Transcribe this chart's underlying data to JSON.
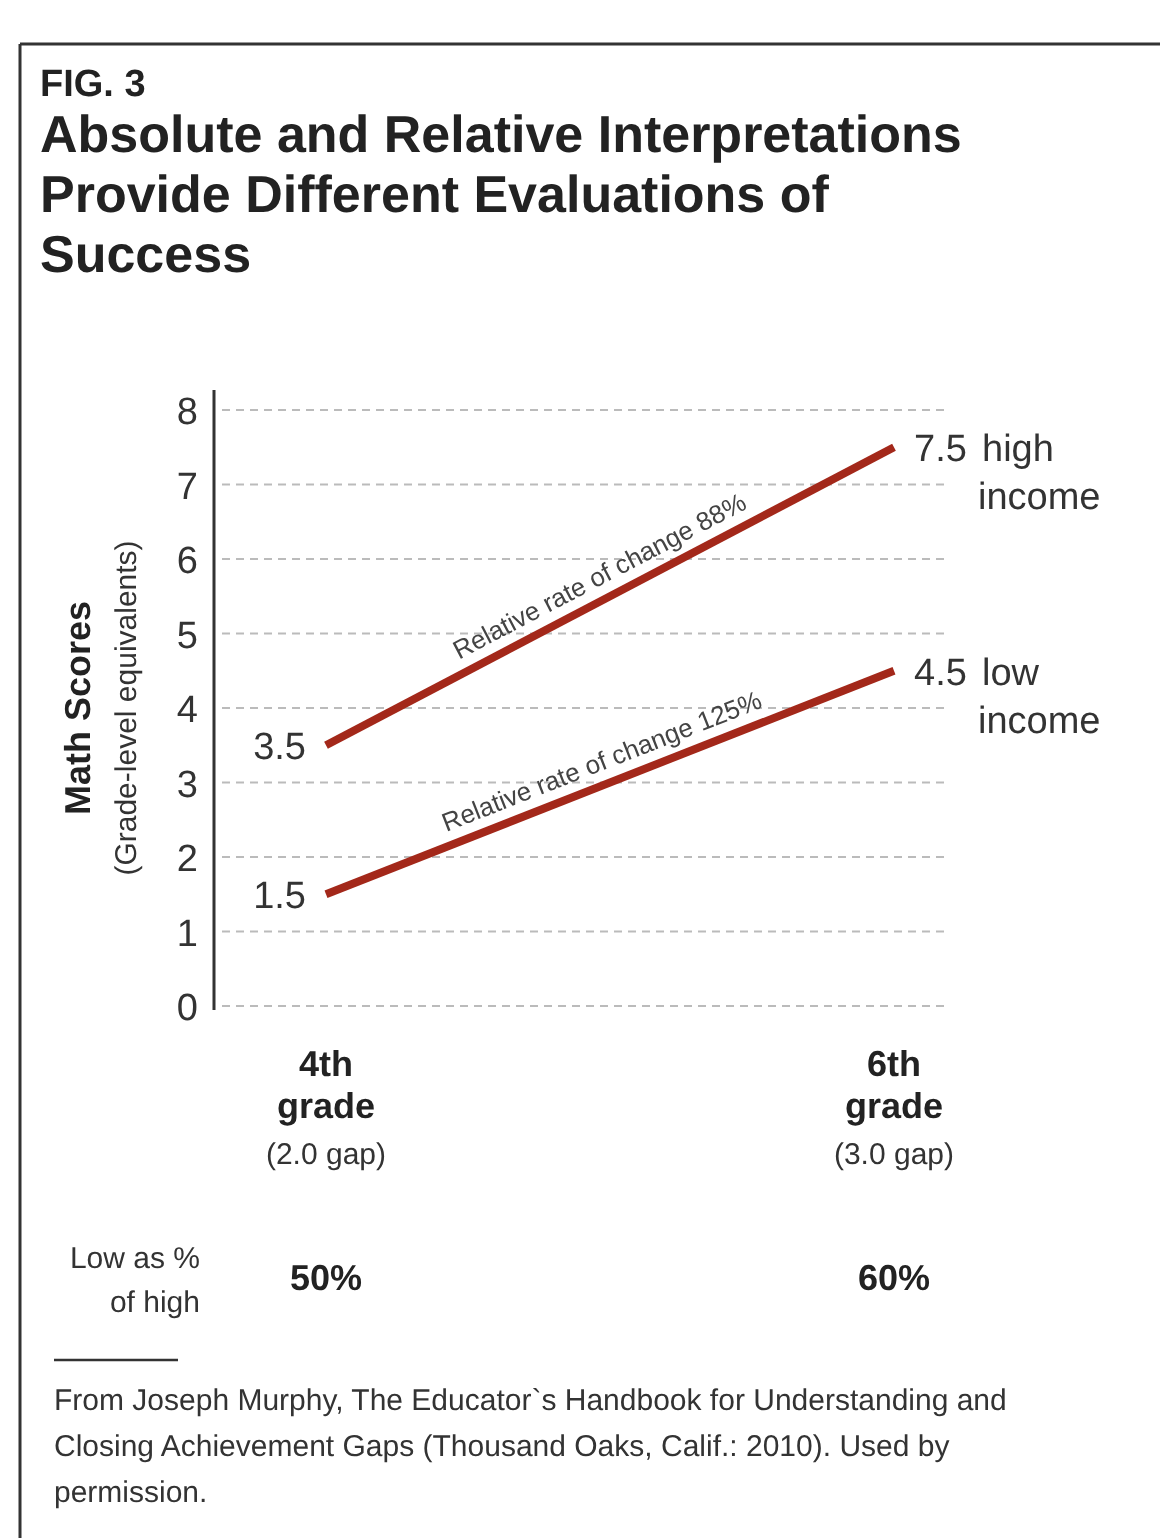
{
  "chart_data": {
    "type": "line",
    "subtitle": "FIG. 3",
    "title": "Absolute and Relative Interpretations Provide Different Evaluations of Success",
    "ylabel": "Math Scores\n(Grade-level equivalents)",
    "categories": [
      "4th\ngrade",
      "6th\ngrade"
    ],
    "series": [
      {
        "name": "high\nincome",
        "color": "#a3281a",
        "values": [
          3.5,
          7.5
        ]
      },
      {
        "name": "low\nincome",
        "color": "#a3281a",
        "values": [
          1.5,
          4.5
        ]
      }
    ],
    "ylim": [
      0,
      8
    ],
    "yticks": [
      0,
      1,
      2,
      3,
      4,
      5,
      6,
      7,
      8
    ],
    "grid": "y",
    "data_labels": true,
    "marker": "none",
    "line_style": "solid",
    "annotations": [
      "Relative rate of change 88%",
      "Relative rate of change 125%",
      "(2.0 gap)",
      "(3.0 gap)",
      "Low as %\nof high",
      "50%",
      "60%",
      "From Joseph Murphy, The Educator`s Handbook for Understanding and Closing Achievement Gaps (Thousand Oaks, Calif.: 2010). Used by permission."
    ]
  }
}
